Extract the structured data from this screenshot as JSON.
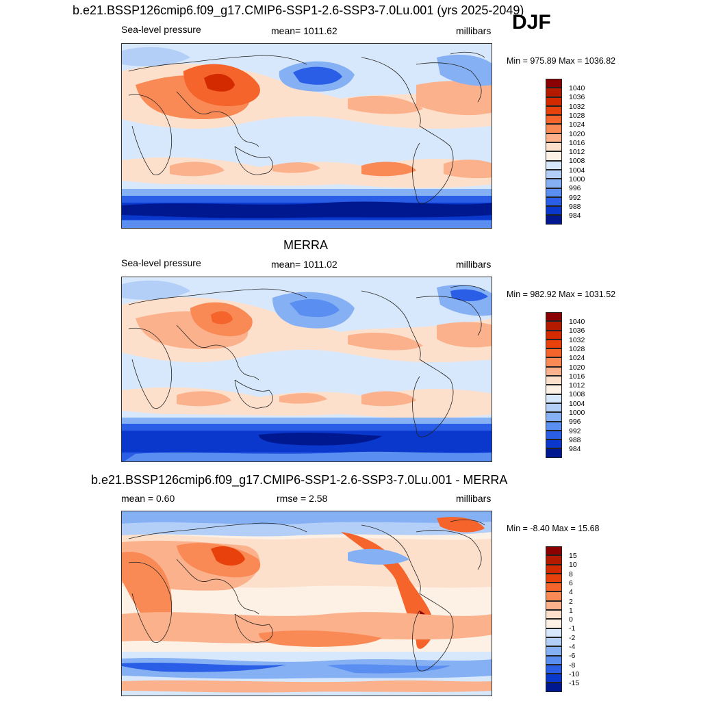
{
  "season": "DJF",
  "panels": [
    {
      "title": "b.e21.BSSP126cmip6.f09_g17.CMIP6-SSP1-2.6-SSP3-7.0Lu.001 (yrs 2025-2049)",
      "left_label": "Sea-level pressure",
      "center_label": "mean= 1011.62",
      "right_label": "millibars",
      "minmax": "Min = 975.89 Max = 1036.82",
      "colorbar_labels": [
        "1040",
        "1036",
        "1032",
        "1028",
        "1024",
        "1020",
        "1016",
        "1012",
        "1008",
        "1004",
        "1000",
        "996",
        "992",
        "988",
        "984"
      ]
    },
    {
      "title": "MERRA",
      "left_label": "Sea-level pressure",
      "center_label": "mean= 1011.02",
      "right_label": "millibars",
      "minmax": "Min = 982.92 Max = 1031.52",
      "colorbar_labels": [
        "1040",
        "1036",
        "1032",
        "1028",
        "1024",
        "1020",
        "1016",
        "1012",
        "1008",
        "1004",
        "1000",
        "996",
        "992",
        "988",
        "984"
      ]
    },
    {
      "title": "b.e21.BSSP126cmip6.f09_g17.CMIP6-SSP1-2.6-SSP3-7.0Lu.001 - MERRA",
      "left_label": "mean =   0.60",
      "center_label": "rmse =   2.58",
      "right_label": "millibars",
      "minmax": "Min =  -8.40 Max =  15.68",
      "colorbar_labels": [
        "15",
        "10",
        "8",
        "6",
        "4",
        "2",
        "1",
        "0",
        "-1",
        "-2",
        "-4",
        "-6",
        "-8",
        "-10",
        "-15"
      ]
    }
  ],
  "colors": {
    "abs_scale": [
      "#8b0000",
      "#b31a00",
      "#d42a00",
      "#e8410c",
      "#f4642b",
      "#f98a55",
      "#fbb18b",
      "#fde0cc",
      "#fdf0e4",
      "#d8e8fc",
      "#b3cff8",
      "#86b0f4",
      "#5a8ef0",
      "#2a5ee6",
      "#0a38cc",
      "#00188f"
    ],
    "diff_scale": [
      "#8b0000",
      "#b31a00",
      "#d42a00",
      "#e8410c",
      "#f4642b",
      "#f98a55",
      "#fbb18b",
      "#fde0cc",
      "#fdf0e4",
      "#d8e8fc",
      "#b3cff8",
      "#86b0f4",
      "#5a8ef0",
      "#2a5ee6",
      "#0a38cc",
      "#00188f"
    ]
  }
}
